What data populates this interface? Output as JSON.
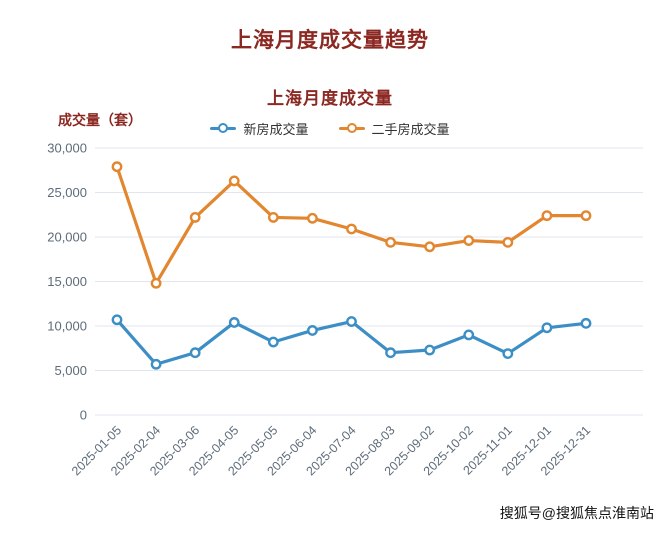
{
  "page": {
    "main_title": "上海月度成交量趋势",
    "watermark": "搜狐号@搜狐焦点淮南站",
    "title_color": "#8C2822",
    "axis_text_color": "#5E6B7A",
    "grid_line_color": "#E0E6F1"
  },
  "chart_data": {
    "type": "line",
    "title": "上海月度成交量",
    "xlabel": "",
    "ylabel": "成交量（套）",
    "ylim": [
      0,
      30000
    ],
    "ytick_step": 5000,
    "grid": true,
    "legend_position": "top",
    "marker": "hollow-circle",
    "categories": [
      "2025-01-05",
      "2025-02-04",
      "2025-03-06",
      "2025-04-05",
      "2025-05-05",
      "2025-06-04",
      "2025-07-04",
      "2025-08-03",
      "2025-09-02",
      "2025-10-02",
      "2025-11-01",
      "2025-12-01",
      "2025-12-31"
    ],
    "series": [
      {
        "name": "新房成交量",
        "color": "#3C8EC5",
        "values": [
          10700,
          5700,
          7000,
          10400,
          8200,
          9500,
          10500,
          7000,
          7300,
          9000,
          6900,
          9800,
          10300
        ]
      },
      {
        "name": "二手房成交量",
        "color": "#E2862F",
        "values": [
          27900,
          14800,
          22200,
          26300,
          22200,
          22100,
          20900,
          19400,
          18900,
          19600,
          19400,
          22400,
          22400
        ]
      }
    ]
  }
}
